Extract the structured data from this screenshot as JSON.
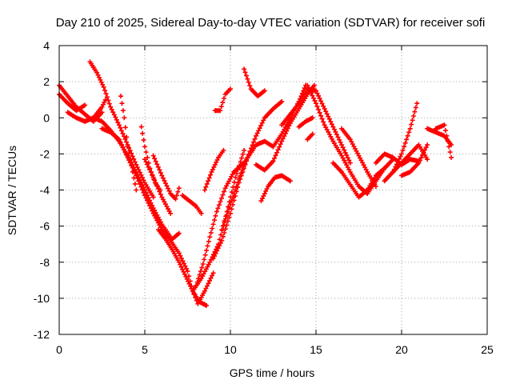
{
  "chart_data": {
    "type": "scatter",
    "title": "Day 210 of 2025, Sidereal Day-to-day VTEC variation (SDTVAR) for receiver sofi",
    "xlabel": "GPS time / hours",
    "ylabel": "SDTVAR / TECUs",
    "xlim": [
      0,
      25
    ],
    "ylim": [
      -12,
      4
    ],
    "xticks": [
      0,
      5,
      10,
      15,
      20,
      25
    ],
    "xtick_labels": [
      "0",
      "5",
      "10",
      "15",
      "20",
      "25"
    ],
    "yticks": [
      -12,
      -10,
      -8,
      -6,
      -4,
      -2,
      0,
      2,
      4
    ],
    "ytick_labels": [
      "-12",
      "-10",
      "-8",
      "-6",
      "-4",
      "-2",
      "0",
      "2",
      "4"
    ],
    "grid": true,
    "marker": "+",
    "color": "#ff0000",
    "series": [
      {
        "name": "arc-1",
        "x": [
          0.0,
          0.5,
          1.0,
          1.5
        ],
        "y": [
          1.3,
          0.8,
          0.4,
          0.7
        ]
      },
      {
        "name": "arc-2",
        "x": [
          0.0,
          0.5,
          1.0,
          1.5,
          2.0,
          2.5
        ],
        "y": [
          1.8,
          1.2,
          0.6,
          0.2,
          -0.2,
          0.3
        ]
      },
      {
        "name": "arc-3",
        "x": [
          0.5,
          1.0,
          1.5,
          2.0,
          2.5,
          2.7
        ],
        "y": [
          0.3,
          0.0,
          -0.2,
          0.0,
          0.6,
          1.0
        ]
      },
      {
        "name": "arc-4",
        "x": [
          1.8,
          2.2,
          2.6,
          3.0,
          3.5,
          4.0,
          4.5,
          5.0,
          5.5
        ],
        "y": [
          3.1,
          2.5,
          1.7,
          0.6,
          -0.4,
          -1.5,
          -2.6,
          -3.6,
          -4.4
        ]
      },
      {
        "name": "arc-5",
        "x": [
          1.5,
          2.0,
          2.5,
          3.0,
          3.5,
          4.0,
          4.5,
          5.0,
          5.5,
          6.0,
          6.5
        ],
        "y": [
          -0.2,
          0.0,
          -0.2,
          -0.7,
          -1.3,
          -2.1,
          -3.0,
          -4.0,
          -5.0,
          -5.9,
          -6.6
        ]
      },
      {
        "name": "arc-6",
        "x": [
          2.5,
          3.0,
          3.5,
          4.0,
          4.5,
          5.0,
          5.5,
          6.0,
          6.5,
          7.0
        ],
        "y": [
          -0.6,
          -0.8,
          -1.2,
          -2.2,
          -3.2,
          -4.3,
          -5.3,
          -6.2,
          -6.8,
          -6.4
        ]
      },
      {
        "name": "arc-7",
        "x": [
          3.6,
          3.8,
          4.0,
          4.3,
          4.5
        ],
        "y": [
          1.2,
          0.0,
          -1.6,
          -3.0,
          -4.0
        ]
      },
      {
        "name": "arc-8",
        "x": [
          4.8,
          5.0,
          5.3,
          5.6,
          5.9
        ],
        "y": [
          -0.5,
          -1.6,
          -2.8,
          -3.6,
          -4.0
        ]
      },
      {
        "name": "arc-9",
        "x": [
          5.0,
          5.5,
          6.0,
          6.5
        ],
        "y": [
          -2.3,
          -3.3,
          -4.4,
          -5.3
        ]
      },
      {
        "name": "arc-10",
        "x": [
          5.5,
          6.0,
          6.5,
          6.8,
          7.0
        ],
        "y": [
          -2.1,
          -3.2,
          -4.2,
          -4.5,
          -3.9
        ]
      },
      {
        "name": "arc-11",
        "x": [
          5.8,
          6.2,
          6.6,
          7.0,
          7.4,
          7.8,
          8.2,
          8.6
        ],
        "y": [
          -6.2,
          -6.7,
          -7.3,
          -8.0,
          -8.8,
          -9.6,
          -10.2,
          -10.4
        ]
      },
      {
        "name": "arc-12",
        "x": [
          6.5,
          7.0,
          7.5,
          7.8,
          8.1,
          8.5,
          9.0
        ],
        "y": [
          -6.8,
          -7.5,
          -8.5,
          -9.6,
          -10.3,
          -9.6,
          -8.6
        ]
      },
      {
        "name": "arc-13",
        "x": [
          7.2,
          7.6,
          8.0,
          8.3
        ],
        "y": [
          -4.3,
          -4.6,
          -4.9,
          -5.3
        ]
      },
      {
        "name": "arc-14",
        "x": [
          7.8,
          8.3,
          8.8,
          9.3,
          9.8,
          10.3,
          10.8
        ],
        "y": [
          -9.6,
          -8.9,
          -8.0,
          -7.0,
          -5.2,
          -3.3,
          -1.8
        ]
      },
      {
        "name": "arc-15",
        "x": [
          8.0,
          8.4,
          8.8,
          9.2,
          9.7,
          10.2,
          10.8,
          11.3
        ],
        "y": [
          -9.3,
          -8.1,
          -6.6,
          -5.2,
          -3.9,
          -3.0,
          -2.5,
          -1.8
        ]
      },
      {
        "name": "arc-16",
        "x": [
          8.5,
          8.9,
          9.3,
          9.6
        ],
        "y": [
          -4.0,
          -3.0,
          -2.2,
          -1.8
        ]
      },
      {
        "name": "arc-17",
        "x": [
          9.1,
          9.4,
          9.7,
          10.0
        ],
        "y": [
          0.4,
          0.4,
          1.3,
          1.6
        ]
      },
      {
        "name": "arc-18",
        "x": [
          9.0,
          9.5,
          10.0,
          10.5,
          11.0,
          11.5,
          12.0,
          12.5,
          13.0
        ],
        "y": [
          -7.8,
          -6.8,
          -5.3,
          -3.6,
          -2.2,
          -1.0,
          0.0,
          0.5,
          0.9
        ]
      },
      {
        "name": "arc-19",
        "x": [
          9.5,
          10.0,
          10.5,
          11.0,
          11.5,
          12.0,
          12.5
        ],
        "y": [
          -6.2,
          -4.8,
          -3.4,
          -2.2,
          -1.5,
          -1.3,
          -1.6
        ]
      },
      {
        "name": "arc-20",
        "x": [
          10.8,
          11.2,
          11.6,
          12.0
        ],
        "y": [
          2.7,
          1.6,
          1.2,
          1.5
        ]
      },
      {
        "name": "arc-21",
        "x": [
          11.5,
          12.0,
          12.5,
          13.0,
          13.5,
          14.0,
          14.5,
          14.9
        ],
        "y": [
          -2.6,
          -2.9,
          -2.4,
          -1.3,
          -0.3,
          0.5,
          1.3,
          1.8
        ]
      },
      {
        "name": "arc-22",
        "x": [
          11.8,
          12.2,
          12.6,
          13.0,
          13.5
        ],
        "y": [
          -4.6,
          -3.8,
          -3.3,
          -3.2,
          -3.5
        ]
      },
      {
        "name": "arc-23",
        "x": [
          12.5,
          13.0,
          13.5,
          14.0,
          14.4
        ],
        "y": [
          -1.6,
          -0.9,
          0.0,
          0.9,
          1.8
        ]
      },
      {
        "name": "arc-24",
        "x": [
          13.0,
          13.5,
          14.0,
          14.5,
          15.0,
          15.5,
          16.0,
          16.5,
          17.0
        ],
        "y": [
          -0.4,
          0.2,
          0.8,
          1.6,
          1.5,
          0.5,
          -0.5,
          -1.5,
          -2.5
        ]
      },
      {
        "name": "arc-25",
        "x": [
          14.5,
          15.0,
          15.5,
          16.0,
          16.5,
          17.0,
          17.5,
          18.0,
          18.5,
          19.0
        ],
        "y": [
          1.8,
          0.8,
          -0.4,
          -1.3,
          -2.1,
          -3.0,
          -3.8,
          -4.2,
          -3.5,
          -2.8
        ]
      },
      {
        "name": "arc-26",
        "x": [
          14.0,
          14.4,
          14.8
        ],
        "y": [
          -0.5,
          -0.2,
          0.0
        ]
      },
      {
        "name": "arc-27",
        "x": [
          14.5,
          14.8
        ],
        "y": [
          -1.2,
          -0.9
        ]
      },
      {
        "name": "arc-28",
        "x": [
          16.0,
          16.5,
          17.0,
          17.5,
          18.0,
          18.5,
          19.0,
          19.5
        ],
        "y": [
          -2.5,
          -3.0,
          -3.7,
          -4.4,
          -4.0,
          -3.2,
          -2.8,
          -2.3
        ]
      },
      {
        "name": "arc-29",
        "x": [
          16.5,
          17.0,
          17.5,
          18.0,
          18.5
        ],
        "y": [
          -0.6,
          -1.2,
          -2.1,
          -3.0,
          -3.8
        ]
      },
      {
        "name": "arc-30",
        "x": [
          18.5,
          19.0,
          19.5,
          20.0,
          20.5,
          21.0
        ],
        "y": [
          -2.5,
          -2.0,
          -2.2,
          -2.6,
          -2.3,
          -2.4
        ]
      },
      {
        "name": "arc-31",
        "x": [
          19.0,
          19.5,
          20.0,
          20.5,
          20.9
        ],
        "y": [
          -3.5,
          -3.0,
          -2.0,
          -0.6,
          0.8
        ]
      },
      {
        "name": "arc-32",
        "x": [
          19.5,
          20.0,
          20.5,
          21.0,
          21.5
        ],
        "y": [
          -3.0,
          -2.5,
          -2.0,
          -1.5,
          -2.3
        ]
      },
      {
        "name": "arc-33",
        "x": [
          20.0,
          20.5,
          21.0,
          21.5
        ],
        "y": [
          -3.2,
          -3.0,
          -2.5,
          -1.5
        ]
      },
      {
        "name": "arc-34",
        "x": [
          21.5,
          22.0,
          22.5,
          22.9
        ],
        "y": [
          -0.6,
          -0.8,
          -1.0,
          -1.5
        ]
      },
      {
        "name": "arc-35",
        "x": [
          22.0,
          22.5,
          22.9
        ],
        "y": [
          -0.6,
          -0.4,
          -2.2
        ]
      }
    ]
  }
}
